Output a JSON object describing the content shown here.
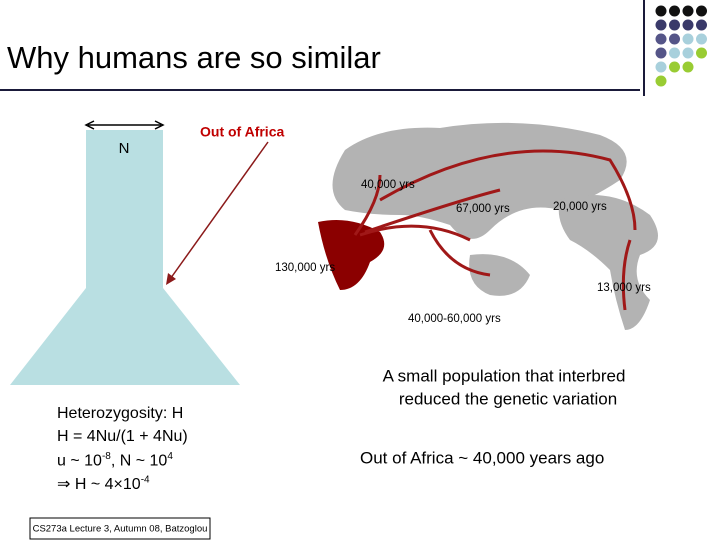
{
  "header": {
    "title": "Why humans are so similar"
  },
  "diagram": {
    "population_label": "N",
    "arrow_label": "Out of Africa"
  },
  "map": {
    "labels": [
      "40,000 yrs",
      "67,000 yrs",
      "20,000 yrs",
      "130,000 yrs",
      "13,000 yrs",
      "40,000-60,000 yrs"
    ]
  },
  "formula": {
    "lines": [
      {
        "parts": [
          {
            "text": "Heterozygosity: H"
          }
        ]
      },
      {
        "parts": [
          {
            "text": "H = 4Nu/(1 + 4Nu)"
          }
        ]
      },
      {
        "parts": [
          {
            "text": "u ~ 10"
          },
          {
            "sup": "-8"
          },
          {
            "text": ", N ~ 10"
          },
          {
            "sup": "4"
          }
        ]
      },
      {
        "parts": [
          {
            "text": "⇒ H ~ 4×10"
          },
          {
            "sup": "-4"
          }
        ]
      }
    ]
  },
  "notes": {
    "line1": "A small population that interbred",
    "line2": "reduced the genetic variation",
    "line3": "Out of Africa ~ 40,000 years ago"
  },
  "footer": {
    "text": "CS273a Lecture 3, Autumn 08, Batzoglou"
  }
}
